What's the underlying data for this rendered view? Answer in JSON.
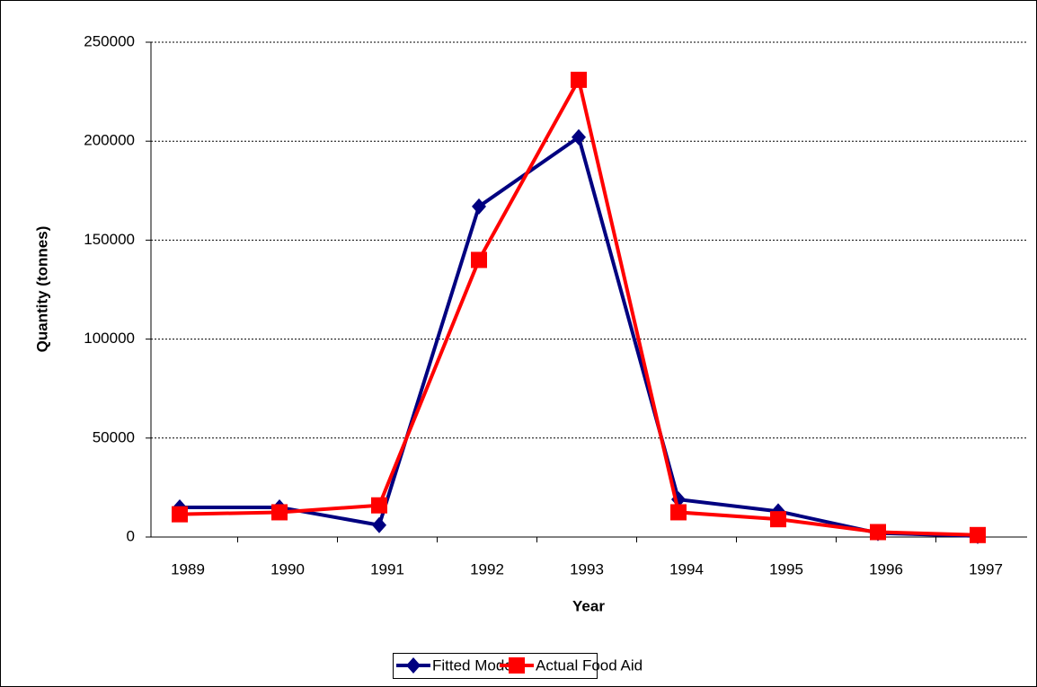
{
  "chart_data": {
    "type": "line",
    "xlabel": "Year",
    "ylabel": "Quantity (tonnes)",
    "categories": [
      "1989",
      "1990",
      "1991",
      "1992",
      "1993",
      "1994",
      "1995",
      "1996",
      "1997"
    ],
    "series": [
      {
        "name": "Fitted Model",
        "color": "#000080",
        "marker": "diamond",
        "values": [
          15000,
          15000,
          6000,
          167000,
          202000,
          19000,
          13000,
          2000,
          500
        ]
      },
      {
        "name": "Actual Food Aid",
        "color": "#ff0000",
        "marker": "square",
        "values": [
          11500,
          12500,
          16000,
          140000,
          231000,
          12500,
          9000,
          2500,
          1000
        ]
      }
    ],
    "ylim": [
      0,
      250000
    ],
    "yticks": [
      0,
      50000,
      100000,
      150000,
      200000,
      250000
    ],
    "grid": true,
    "legend": "bottom"
  }
}
